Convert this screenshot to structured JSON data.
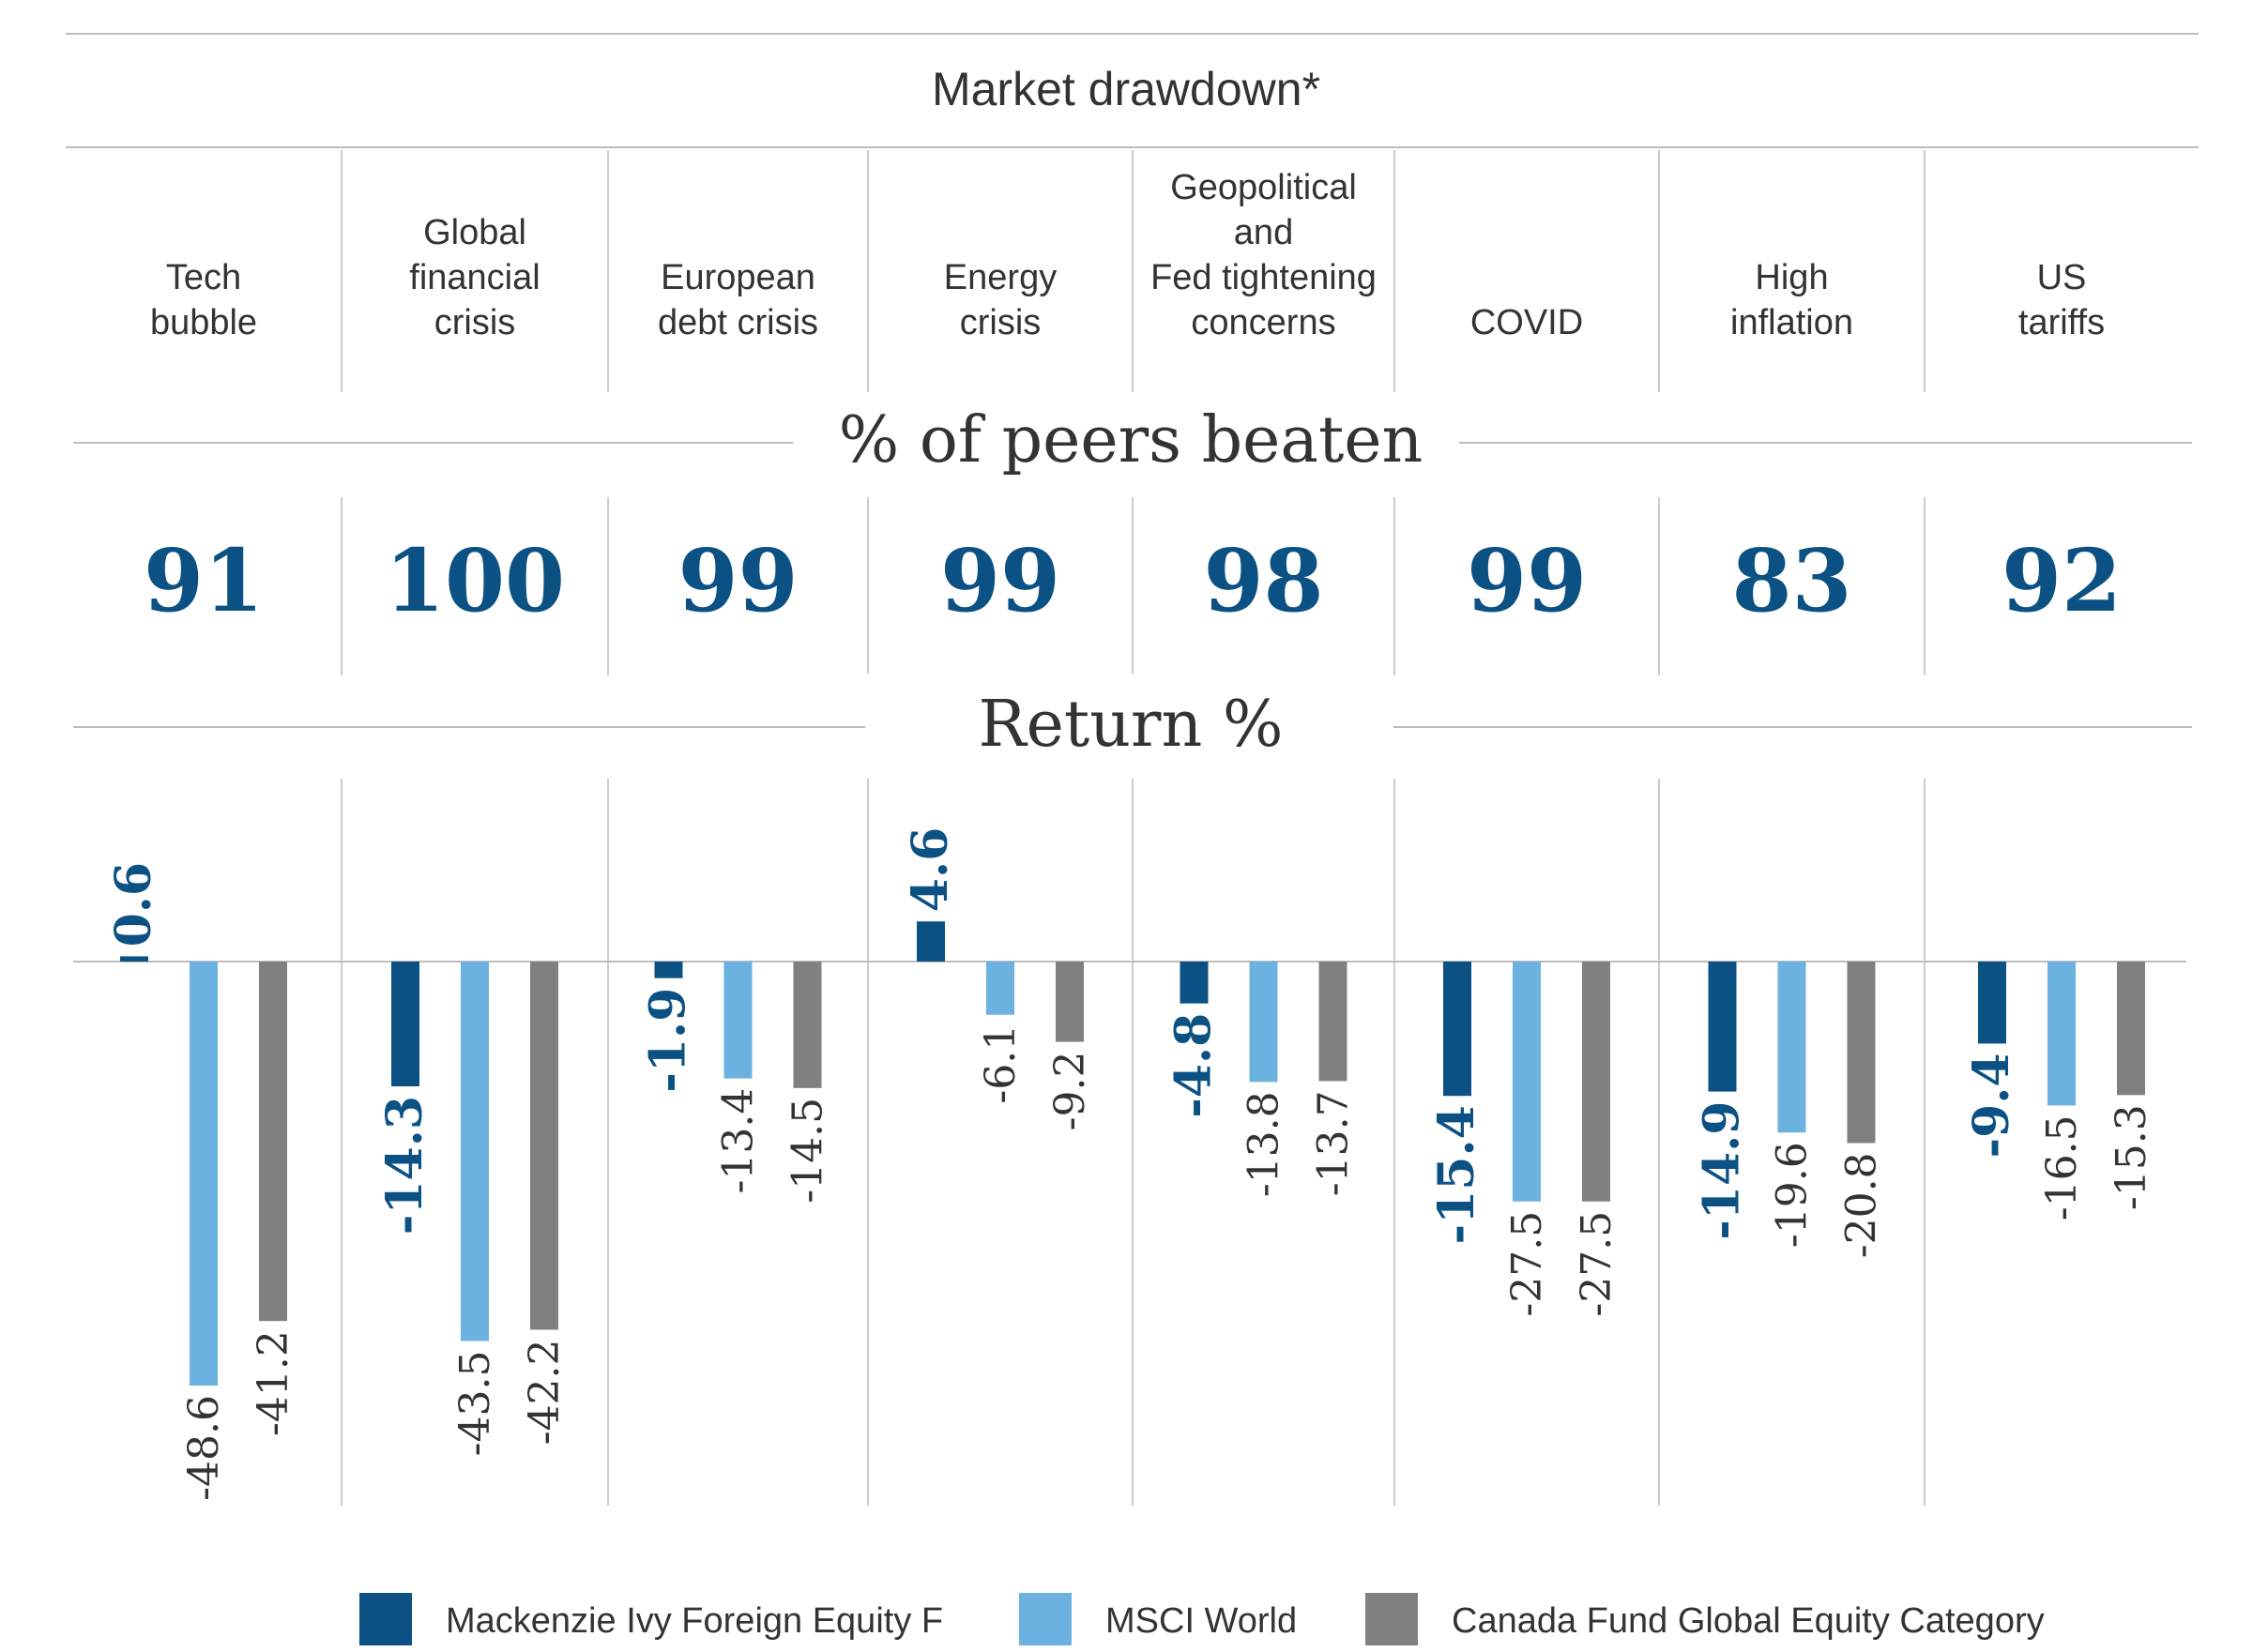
{
  "chart_data": {
    "type": "bar",
    "title": "Market drawdown*",
    "sections": {
      "peers_label": "% of peers beaten",
      "return_label": "Return %"
    },
    "categories": [
      [
        "Tech",
        "bubble"
      ],
      [
        "Global",
        "financial",
        "crisis"
      ],
      [
        "European",
        "debt crisis"
      ],
      [
        "Energy",
        "crisis"
      ],
      [
        "Geopolitical",
        "and",
        "Fed tightening",
        "concerns"
      ],
      [
        "COVID"
      ],
      [
        "High",
        "inflation"
      ],
      [
        "US",
        "tariffs"
      ]
    ],
    "peers_beaten": [
      91,
      100,
      99,
      99,
      98,
      99,
      83,
      92
    ],
    "series": [
      {
        "name": "Mackenzie Ivy Foreign Equity F",
        "color": "#0b5183",
        "values": [
          0.6,
          -14.3,
          -1.9,
          4.6,
          -4.8,
          -15.4,
          -14.9,
          -9.4
        ]
      },
      {
        "name": "MSCI World",
        "color": "#6cb2e0",
        "values": [
          -48.6,
          -43.5,
          -13.4,
          -6.1,
          -13.8,
          -27.5,
          -19.6,
          -16.5
        ]
      },
      {
        "name": "Canada Fund Global Equity Category",
        "color": "#808080",
        "values": [
          -41.2,
          -42.2,
          -14.5,
          -9.2,
          -13.7,
          -27.5,
          -20.8,
          -15.3
        ]
      }
    ],
    "value_labels": [
      [
        "0.6",
        "-48.6",
        "-41.2"
      ],
      [
        "-14.3",
        "-43.5",
        "-42.2"
      ],
      [
        "-1.9",
        "-13.4",
        "-14.5"
      ],
      [
        "4.6",
        "-6.1",
        "-9.2"
      ],
      [
        "-4.8",
        "-13.8",
        "-13.7"
      ],
      [
        "-15.4",
        "-27.5",
        "-27.5"
      ],
      [
        "-14.9",
        "-19.6",
        "-20.8"
      ],
      [
        "-9.4",
        "-16.5",
        "-15.3"
      ]
    ],
    "ylim": [
      -60,
      10
    ],
    "legend_position": "bottom",
    "grid": false
  }
}
